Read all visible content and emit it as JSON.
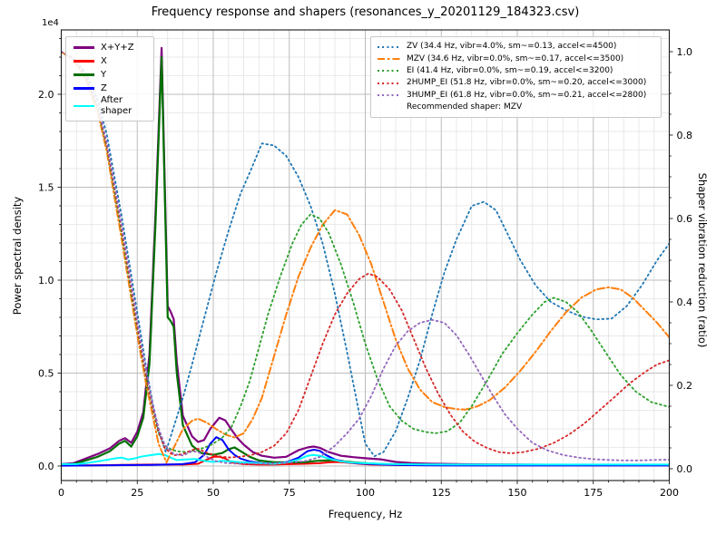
{
  "figure": {
    "title": "Frequency response and shapers (resonances_y_20201129_184323.csv)",
    "offset_text": "1e4",
    "xlabel": "Frequency, Hz",
    "ylabel_left": "Power spectral density",
    "ylabel_right": "Shaper vibration reduction (ratio)"
  },
  "legend_left": {
    "items": [
      {
        "label": "X+Y+Z",
        "color": "#800080",
        "style": "solid"
      },
      {
        "label": "X",
        "color": "#ff0000",
        "style": "solid"
      },
      {
        "label": "Y",
        "color": "#007000",
        "style": "solid"
      },
      {
        "label": "Z",
        "color": "#0000ff",
        "style": "solid"
      },
      {
        "label": "After shaper",
        "color": "#00ffff",
        "style": "solid"
      }
    ]
  },
  "legend_right": {
    "items": [
      {
        "label": "ZV (34.4 Hz, vibr=4.0%, sm~=0.13, accel<=4500)",
        "color": "#1f77b4",
        "style": "dotted"
      },
      {
        "label": "MZV (34.6 Hz, vibr=0.0%, sm~=0.17, accel<=3500)",
        "color": "#ff7f0e",
        "style": "dashdot"
      },
      {
        "label": "EI (41.4 Hz, vibr=0.0%, sm~=0.19, accel<=3200)",
        "color": "#2ca02c",
        "style": "dotted"
      },
      {
        "label": "2HUMP_EI (51.8 Hz, vibr=0.0%, sm~=0.20, accel<=3000)",
        "color": "#d62728",
        "style": "dotted"
      },
      {
        "label": "3HUMP_EI (61.8 Hz, vibr=0.0%, sm~=0.21, accel<=2800)",
        "color": "#9467bd",
        "style": "dotted"
      }
    ],
    "footer": "Recommended shaper: MZV"
  },
  "chart_data": {
    "type": "line",
    "title": "Frequency response and shapers (resonances_y_20201129_184323.csv)",
    "xlabel": "Frequency, Hz",
    "x_axis": {
      "min": 0,
      "max": 200,
      "major": [
        0,
        25,
        50,
        75,
        100,
        125,
        150,
        175,
        200
      ],
      "minor_step": 5
    },
    "y_left": {
      "label": "Power spectral density",
      "unit": "1e4",
      "major_values": [
        0,
        0.5,
        1.0,
        1.5,
        2.0
      ],
      "labels": [
        "0.0",
        "0.5",
        "1.0",
        "1.5",
        "2.0"
      ],
      "minor_step": 0.1,
      "max_visible": 2.33
    },
    "y_right": {
      "label": "Shaper vibration reduction (ratio)",
      "major_values": [
        0,
        0.2,
        0.4,
        0.6,
        0.8,
        1.0
      ],
      "labels": [
        "0.0",
        "0.2",
        "0.4",
        "0.6",
        "0.8",
        "1.0"
      ],
      "minor_step": 0.05
    },
    "grid": "major+minor",
    "series": [
      {
        "name": "X+Y+Z",
        "axis": "left",
        "color": "#800080",
        "style": "solid",
        "width": 2.2,
        "x": [
          0,
          4,
          8,
          12,
          16,
          19,
          21,
          23,
          25,
          27,
          29,
          31,
          33,
          34,
          35,
          36,
          37,
          38,
          40,
          43,
          45,
          47,
          49,
          52,
          54,
          56,
          58,
          60,
          63,
          66,
          70,
          74,
          78,
          81,
          83,
          85,
          88,
          92,
          96,
          100,
          105,
          110,
          115,
          120,
          130,
          140,
          150,
          160,
          180,
          200
        ],
        "y": [
          0.01,
          0.015,
          0.04,
          0.065,
          0.095,
          0.135,
          0.15,
          0.125,
          0.185,
          0.29,
          0.6,
          1.35,
          2.25,
          1.55,
          0.86,
          0.83,
          0.79,
          0.56,
          0.27,
          0.16,
          0.13,
          0.14,
          0.2,
          0.26,
          0.245,
          0.195,
          0.15,
          0.115,
          0.075,
          0.055,
          0.045,
          0.05,
          0.085,
          0.1,
          0.105,
          0.098,
          0.075,
          0.055,
          0.048,
          0.042,
          0.036,
          0.022,
          0.016,
          0.013,
          0.01,
          0.009,
          0.008,
          0.007,
          0.006,
          0.006
        ]
      },
      {
        "name": "X",
        "axis": "left",
        "color": "#ff0000",
        "style": "solid",
        "width": 2,
        "x": [
          0,
          10,
          20,
          30,
          40,
          45,
          48,
          50,
          52,
          54,
          56,
          60,
          65,
          70,
          75,
          80,
          85,
          88,
          91,
          94,
          98,
          102,
          110,
          120,
          140,
          160,
          180,
          200
        ],
        "y": [
          0.003,
          0.004,
          0.006,
          0.008,
          0.008,
          0.012,
          0.035,
          0.05,
          0.05,
          0.04,
          0.02,
          0.01,
          0.008,
          0.008,
          0.01,
          0.012,
          0.015,
          0.02,
          0.022,
          0.018,
          0.012,
          0.008,
          0.006,
          0.005,
          0.004,
          0.004,
          0.003,
          0.003
        ]
      },
      {
        "name": "Y",
        "axis": "left",
        "color": "#007000",
        "style": "solid",
        "width": 2.2,
        "x": [
          0,
          4,
          8,
          12,
          16,
          19,
          21,
          23,
          25,
          27,
          29,
          31,
          33,
          34,
          35,
          36,
          37,
          38,
          40,
          43,
          46,
          50,
          53,
          55,
          57,
          59,
          62,
          65,
          70,
          75,
          80,
          84,
          87,
          90,
          93,
          96,
          100,
          105,
          110,
          120,
          140,
          160,
          180,
          200
        ],
        "y": [
          0.005,
          0.01,
          0.03,
          0.05,
          0.08,
          0.12,
          0.135,
          0.105,
          0.16,
          0.26,
          0.55,
          1.3,
          2.2,
          1.5,
          0.8,
          0.78,
          0.75,
          0.5,
          0.22,
          0.11,
          0.07,
          0.06,
          0.07,
          0.09,
          0.1,
          0.08,
          0.05,
          0.03,
          0.02,
          0.02,
          0.02,
          0.028,
          0.03,
          0.032,
          0.025,
          0.02,
          0.015,
          0.01,
          0.008,
          0.006,
          0.005,
          0.005,
          0.005,
          0.005
        ]
      },
      {
        "name": "Z",
        "axis": "left",
        "color": "#0000ff",
        "style": "solid",
        "width": 2,
        "x": [
          0,
          10,
          20,
          30,
          40,
          44,
          47,
          49,
          51,
          53,
          55,
          57,
          59,
          62,
          66,
          70,
          74,
          78,
          81,
          83,
          85,
          87,
          90,
          94,
          98,
          102,
          106,
          110,
          120,
          140,
          160,
          180,
          200
        ],
        "y": [
          0.002,
          0.003,
          0.005,
          0.006,
          0.01,
          0.02,
          0.06,
          0.12,
          0.155,
          0.14,
          0.09,
          0.06,
          0.04,
          0.025,
          0.015,
          0.012,
          0.02,
          0.045,
          0.08,
          0.088,
          0.082,
          0.06,
          0.035,
          0.02,
          0.014,
          0.011,
          0.008,
          0.006,
          0.004,
          0.003,
          0.003,
          0.003,
          0.003
        ]
      },
      {
        "name": "After shaper",
        "axis": "left",
        "color": "#00ffff",
        "style": "solid",
        "width": 2,
        "x": [
          0,
          5,
          8,
          12,
          15,
          18,
          20,
          22,
          24,
          26,
          28,
          30,
          32,
          34,
          36,
          38,
          41,
          44,
          47,
          50,
          53,
          56,
          59,
          62,
          66,
          70,
          74,
          78,
          81,
          83,
          85,
          88,
          92,
          96,
          100,
          105,
          110,
          120,
          140,
          160,
          180,
          200
        ],
        "y": [
          0.01,
          0.01,
          0.015,
          0.025,
          0.033,
          0.042,
          0.045,
          0.035,
          0.04,
          0.05,
          0.055,
          0.06,
          0.065,
          0.06,
          0.045,
          0.032,
          0.035,
          0.038,
          0.028,
          0.022,
          0.028,
          0.025,
          0.02,
          0.018,
          0.014,
          0.012,
          0.018,
          0.035,
          0.055,
          0.06,
          0.055,
          0.04,
          0.025,
          0.018,
          0.015,
          0.012,
          0.01,
          0.009,
          0.008,
          0.008,
          0.008,
          0.008
        ]
      },
      {
        "name": "ZV",
        "axis": "right",
        "color": "#1f77b4",
        "style": "dotted",
        "width": 1.8,
        "x": [
          0,
          4,
          8,
          12,
          15,
          18,
          20,
          22,
          24,
          26,
          28,
          30,
          32,
          34.4,
          37,
          40,
          43,
          47,
          51,
          55,
          59,
          62,
          66,
          70,
          74,
          78,
          82,
          86,
          90,
          94,
          97,
          100,
          103,
          106,
          110,
          114,
          118,
          122,
          126,
          130,
          135,
          139,
          143,
          147,
          151,
          156,
          161,
          166,
          171,
          176,
          181,
          186,
          191,
          196,
          200
        ],
        "y": [
          1.0,
          0.985,
          0.95,
          0.885,
          0.8,
          0.68,
          0.6,
          0.51,
          0.42,
          0.33,
          0.24,
          0.16,
          0.09,
          0.04,
          0.1,
          0.17,
          0.25,
          0.36,
          0.47,
          0.57,
          0.66,
          0.71,
          0.78,
          0.775,
          0.75,
          0.7,
          0.63,
          0.54,
          0.42,
          0.28,
          0.17,
          0.06,
          0.03,
          0.04,
          0.09,
          0.17,
          0.26,
          0.37,
          0.47,
          0.55,
          0.63,
          0.64,
          0.62,
          0.56,
          0.5,
          0.44,
          0.4,
          0.38,
          0.365,
          0.358,
          0.36,
          0.39,
          0.44,
          0.5,
          0.54
        ]
      },
      {
        "name": "MZV",
        "axis": "right",
        "color": "#ff7f0e",
        "style": "dashdot",
        "width": 2,
        "x": [
          0,
          4,
          8,
          12,
          15,
          18,
          20,
          22,
          24,
          26,
          28,
          30,
          32,
          34.6,
          37,
          40,
          43,
          45,
          48,
          51,
          54,
          57,
          60,
          63,
          66,
          70,
          74,
          78,
          82,
          86,
          90,
          94,
          98,
          102,
          106,
          110,
          114,
          118,
          122,
          126,
          130,
          133,
          137,
          141,
          146,
          151,
          156,
          161,
          166,
          171,
          176,
          180,
          184,
          188,
          192,
          196,
          200
        ],
        "y": [
          1.0,
          0.98,
          0.935,
          0.855,
          0.76,
          0.63,
          0.545,
          0.455,
          0.365,
          0.28,
          0.2,
          0.13,
          0.06,
          0.015,
          0.05,
          0.095,
          0.115,
          0.12,
          0.11,
          0.095,
          0.082,
          0.075,
          0.085,
          0.12,
          0.17,
          0.27,
          0.37,
          0.46,
          0.53,
          0.585,
          0.62,
          0.61,
          0.56,
          0.49,
          0.4,
          0.31,
          0.24,
          0.19,
          0.16,
          0.148,
          0.143,
          0.142,
          0.15,
          0.165,
          0.195,
          0.235,
          0.28,
          0.33,
          0.375,
          0.41,
          0.43,
          0.435,
          0.43,
          0.41,
          0.38,
          0.35,
          0.315
        ]
      },
      {
        "name": "EI",
        "axis": "right",
        "color": "#2ca02c",
        "style": "dotted",
        "width": 1.8,
        "x": [
          0,
          4,
          8,
          12,
          15,
          18,
          20,
          22,
          24,
          26,
          28,
          30,
          32,
          34,
          36,
          38,
          41.4,
          44,
          47,
          50,
          53,
          56,
          59,
          62,
          65,
          68,
          72,
          76,
          79,
          82,
          85,
          88,
          92,
          96,
          100,
          104,
          108,
          112,
          116,
          120,
          123,
          127,
          131,
          135,
          140,
          145,
          150,
          155,
          159,
          162,
          166,
          170,
          174,
          179,
          184,
          189,
          194,
          200
        ],
        "y": [
          1.0,
          0.982,
          0.94,
          0.862,
          0.77,
          0.645,
          0.56,
          0.47,
          0.38,
          0.295,
          0.215,
          0.145,
          0.085,
          0.055,
          0.047,
          0.042,
          0.04,
          0.045,
          0.05,
          0.06,
          0.075,
          0.1,
          0.15,
          0.21,
          0.29,
          0.37,
          0.46,
          0.54,
          0.585,
          0.61,
          0.6,
          0.565,
          0.49,
          0.4,
          0.3,
          0.215,
          0.15,
          0.115,
          0.095,
          0.088,
          0.085,
          0.09,
          0.11,
          0.15,
          0.21,
          0.275,
          0.325,
          0.37,
          0.4,
          0.41,
          0.4,
          0.375,
          0.335,
          0.28,
          0.225,
          0.185,
          0.16,
          0.148
        ]
      },
      {
        "name": "2HUMP_EI",
        "axis": "right",
        "color": "#d62728",
        "style": "dotted",
        "width": 1.8,
        "x": [
          0,
          4,
          8,
          12,
          15,
          18,
          20,
          22,
          24,
          26,
          28,
          30,
          32,
          34,
          37,
          40,
          43,
          45,
          48,
          51.8,
          55,
          58,
          62,
          66,
          70,
          74,
          78,
          82,
          86,
          90,
          94,
          98,
          101,
          104,
          108,
          112,
          116,
          120,
          124,
          128,
          132,
          136,
          140,
          144,
          148,
          152,
          157,
          162,
          167,
          172,
          177,
          182,
          187,
          192,
          196,
          200
        ],
        "y": [
          1.0,
          0.983,
          0.942,
          0.868,
          0.775,
          0.655,
          0.57,
          0.48,
          0.39,
          0.3,
          0.22,
          0.15,
          0.09,
          0.05,
          0.032,
          0.035,
          0.045,
          0.048,
          0.038,
          0.03,
          0.027,
          0.028,
          0.032,
          0.04,
          0.055,
          0.085,
          0.14,
          0.22,
          0.3,
          0.37,
          0.42,
          0.455,
          0.468,
          0.46,
          0.43,
          0.38,
          0.31,
          0.24,
          0.18,
          0.13,
          0.09,
          0.065,
          0.05,
          0.04,
          0.037,
          0.04,
          0.048,
          0.062,
          0.082,
          0.108,
          0.14,
          0.172,
          0.205,
          0.232,
          0.25,
          0.26
        ]
      },
      {
        "name": "3HUMP_EI",
        "axis": "right",
        "color": "#9467bd",
        "style": "dotted",
        "width": 1.8,
        "x": [
          0,
          4,
          8,
          12,
          15,
          18,
          20,
          22,
          24,
          26,
          28,
          30,
          32,
          34,
          37,
          40,
          43,
          45,
          48,
          51,
          54,
          58,
          62,
          66,
          70,
          75,
          80,
          85,
          90,
          94,
          98,
          102,
          106,
          110,
          114,
          118,
          122,
          126,
          130,
          134,
          138,
          142,
          146,
          150,
          155,
          160,
          165,
          170,
          175,
          180,
          185,
          190,
          195,
          200
        ],
        "y": [
          1.0,
          0.984,
          0.945,
          0.872,
          0.78,
          0.662,
          0.578,
          0.49,
          0.4,
          0.31,
          0.23,
          0.158,
          0.098,
          0.058,
          0.035,
          0.032,
          0.042,
          0.04,
          0.028,
          0.018,
          0.014,
          0.012,
          0.012,
          0.012,
          0.013,
          0.015,
          0.018,
          0.028,
          0.055,
          0.085,
          0.12,
          0.175,
          0.24,
          0.295,
          0.33,
          0.35,
          0.357,
          0.35,
          0.32,
          0.275,
          0.225,
          0.175,
          0.13,
          0.096,
          0.062,
          0.044,
          0.033,
          0.027,
          0.023,
          0.021,
          0.02,
          0.02,
          0.021,
          0.022
        ]
      }
    ]
  }
}
